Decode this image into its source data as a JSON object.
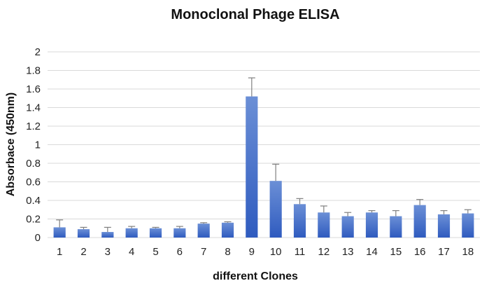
{
  "chart_data": {
    "type": "bar",
    "title": "Monoclonal Phage ELISA",
    "xlabel": "different Clones",
    "ylabel": "Absorbace  (450nm)",
    "categories": [
      "1",
      "2",
      "3",
      "4",
      "5",
      "6",
      "7",
      "8",
      "9",
      "10",
      "11",
      "12",
      "13",
      "14",
      "15",
      "16",
      "17",
      "18"
    ],
    "series": [
      {
        "values": [
          0.11,
          0.09,
          0.06,
          0.1,
          0.1,
          0.1,
          0.15,
          0.16,
          1.52,
          0.61,
          0.36,
          0.27,
          0.23,
          0.27,
          0.23,
          0.35,
          0.25,
          0.26
        ],
        "error": [
          0.08,
          0.02,
          0.05,
          0.02,
          0.01,
          0.02,
          0.01,
          0.01,
          0.2,
          0.18,
          0.06,
          0.07,
          0.04,
          0.02,
          0.06,
          0.06,
          0.04,
          0.04
        ]
      }
    ],
    "ylim": [
      0,
      2
    ],
    "yticks": [
      "0",
      "0.2",
      "0.4",
      "0.6",
      "0.8",
      "1",
      "1.2",
      "1.4",
      "1.6",
      "1.8",
      "2"
    ],
    "grid": true,
    "legend": "none",
    "colors": {
      "bar_top": "#6b8fd6",
      "bar_bottom": "#2f5bbf",
      "gridline": "#d9d9d9",
      "error_bar": "#7f7f7f"
    }
  }
}
